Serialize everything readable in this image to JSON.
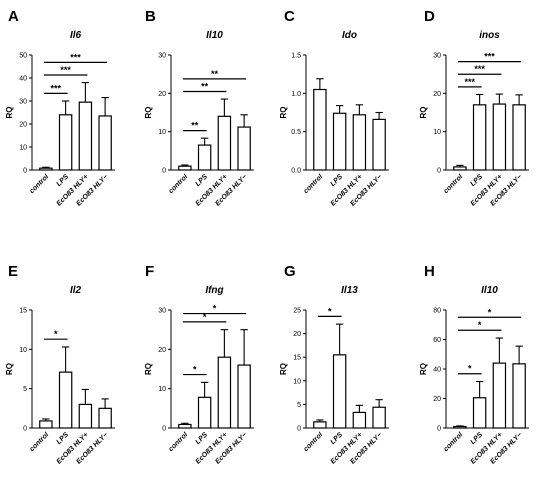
{
  "chart_data": [
    {
      "label": "A",
      "type": "bar",
      "title": "Il6",
      "ylabel": "RQ",
      "ylim": [
        0,
        50
      ],
      "yticks": [
        0,
        10,
        20,
        30,
        40,
        50
      ],
      "categories": [
        "control",
        "LPS",
        "EcO83 HLY+",
        "EcO83 HLY−"
      ],
      "values": [
        0.8,
        24,
        29.5,
        23.5
      ],
      "errors": [
        0.4,
        6,
        8.5,
        8
      ],
      "significance": [
        {
          "from": 0,
          "to": 1,
          "label": "***"
        },
        {
          "from": 0,
          "to": 2,
          "label": "***"
        },
        {
          "from": 0,
          "to": 3,
          "label": "***"
        }
      ]
    },
    {
      "label": "B",
      "type": "bar",
      "title": "Il10",
      "ylabel": "RQ",
      "ylim": [
        0,
        30
      ],
      "yticks": [
        0,
        10,
        20,
        30
      ],
      "categories": [
        "control",
        "LPS",
        "EcO83 HLY+",
        "EcO83 HLY−"
      ],
      "values": [
        1,
        6.5,
        14,
        11.2
      ],
      "errors": [
        0.3,
        1.8,
        4.5,
        3.2
      ],
      "significance": [
        {
          "from": 0,
          "to": 1,
          "label": "**"
        },
        {
          "from": 0,
          "to": 2,
          "label": "**"
        },
        {
          "from": 0,
          "to": 3,
          "label": "**"
        }
      ]
    },
    {
      "label": "C",
      "type": "bar",
      "title": "Ido",
      "ylabel": "RQ",
      "ylim": [
        0,
        1.5
      ],
      "yticks": [
        0.0,
        0.5,
        1.0,
        1.5
      ],
      "categories": [
        "control",
        "LPS",
        "EcO83 HLY+",
        "EcO83 HLY−"
      ],
      "values": [
        1.05,
        0.74,
        0.72,
        0.66
      ],
      "errors": [
        0.14,
        0.1,
        0.13,
        0.09
      ],
      "significance": []
    },
    {
      "label": "D",
      "type": "bar",
      "title": "inos",
      "ylabel": "RQ",
      "ylim": [
        0,
        30
      ],
      "yticks": [
        0,
        10,
        20,
        30
      ],
      "categories": [
        "control",
        "LPS",
        "EcO83 HLY+",
        "EcO83 HLY−"
      ],
      "values": [
        0.8,
        17,
        17.2,
        17
      ],
      "errors": [
        0.4,
        2.7,
        2.6,
        2.6
      ],
      "significance": [
        {
          "from": 0,
          "to": 1,
          "label": "***"
        },
        {
          "from": 0,
          "to": 2,
          "label": "***"
        },
        {
          "from": 0,
          "to": 3,
          "label": "***"
        }
      ]
    },
    {
      "label": "E",
      "type": "bar",
      "title": "Il2",
      "ylabel": "RQ",
      "ylim": [
        0,
        15
      ],
      "yticks": [
        0,
        5,
        10,
        15
      ],
      "categories": [
        "control",
        "LPS",
        "EcO83 HLY+",
        "EcO83 HLY−"
      ],
      "values": [
        0.9,
        7.1,
        3,
        2.5
      ],
      "errors": [
        0.25,
        3.2,
        1.9,
        1.2
      ],
      "significance": [
        {
          "from": 0,
          "to": 1,
          "label": "*"
        }
      ]
    },
    {
      "label": "F",
      "type": "bar",
      "title": "Ifng",
      "ylabel": "RQ",
      "ylim": [
        0,
        30
      ],
      "yticks": [
        0,
        10,
        20,
        30
      ],
      "categories": [
        "control",
        "LPS",
        "EcO83 HLY+",
        "EcO83 HLY−"
      ],
      "values": [
        0.9,
        7.8,
        18,
        16
      ],
      "errors": [
        0.3,
        3.8,
        7,
        9
      ],
      "significance": [
        {
          "from": 0,
          "to": 1,
          "label": "*"
        },
        {
          "from": 0,
          "to": 2,
          "label": "*"
        },
        {
          "from": 0,
          "to": 3,
          "label": "*"
        }
      ]
    },
    {
      "label": "G",
      "type": "bar",
      "title": "Il13",
      "ylabel": "RQ",
      "ylim": [
        0,
        25
      ],
      "yticks": [
        0,
        5,
        10,
        15,
        20,
        25
      ],
      "categories": [
        "control",
        "LPS",
        "EcO83 HLY+",
        "EcO83 HLY−"
      ],
      "values": [
        1.3,
        15.5,
        3.3,
        4.4
      ],
      "errors": [
        0.4,
        6.5,
        1.5,
        1.6
      ],
      "significance": [
        {
          "from": 0,
          "to": 1,
          "label": "*"
        }
      ]
    },
    {
      "label": "H",
      "type": "bar",
      "title": "Il10",
      "ylabel": "RQ",
      "ylim": [
        0,
        80
      ],
      "yticks": [
        0,
        20,
        40,
        60,
        80
      ],
      "categories": [
        "control",
        "LPS",
        "EcO83 HLY+",
        "EcO83 HLY−"
      ],
      "values": [
        1,
        20.5,
        44,
        43.5
      ],
      "errors": [
        0.4,
        11,
        17,
        12
      ],
      "significance": [
        {
          "from": 0,
          "to": 1,
          "label": "*"
        },
        {
          "from": 0,
          "to": 2,
          "label": "*"
        },
        {
          "from": 0,
          "to": 3,
          "label": "*"
        }
      ]
    }
  ]
}
